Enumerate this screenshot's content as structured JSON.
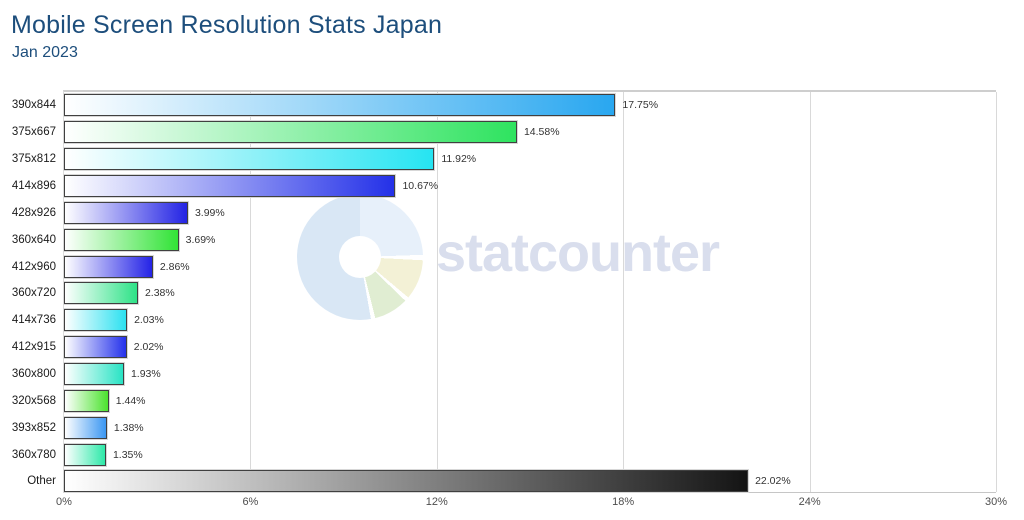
{
  "header": {
    "title": "Mobile Screen Resolution Stats Japan",
    "subtitle": "Jan 2023"
  },
  "watermark": {
    "text": "statcounter"
  },
  "axis": {
    "tick_labels": [
      "0%",
      "6%",
      "12%",
      "18%",
      "24%",
      "30%"
    ]
  },
  "chart_data": {
    "type": "bar",
    "orientation": "horizontal",
    "title": "Mobile Screen Resolution Stats Japan",
    "subtitle": "Jan 2023",
    "categories": [
      "390x844",
      "375x667",
      "375x812",
      "414x896",
      "428x926",
      "360x640",
      "412x960",
      "360x720",
      "414x736",
      "412x915",
      "360x800",
      "320x568",
      "393x852",
      "360x780",
      "Other"
    ],
    "values": [
      17.75,
      14.58,
      11.92,
      10.67,
      3.99,
      3.69,
      2.86,
      2.38,
      2.03,
      2.02,
      1.93,
      1.44,
      1.38,
      1.35,
      22.02
    ],
    "value_labels": [
      "17.75%",
      "14.58%",
      "11.92%",
      "10.67%",
      "3.99%",
      "3.69%",
      "2.86%",
      "2.38%",
      "2.03%",
      "2.02%",
      "1.93%",
      "1.44%",
      "1.38%",
      "1.35%",
      "22.02%"
    ],
    "bar_colors": [
      "#29a7f0",
      "#2ee35f",
      "#26e4f2",
      "#2431e8",
      "#2424e4",
      "#31e336",
      "#2423e6",
      "#2ee287",
      "#2ce1f0",
      "#2431eb",
      "#29e3c4",
      "#4be32e",
      "#3b97f2",
      "#2ee9a9",
      "#141414"
    ],
    "gradient_start_color": "#ffffff",
    "xlim": [
      0,
      30
    ],
    "xticks": [
      0,
      6,
      12,
      18,
      24,
      30
    ],
    "grid": "vertical",
    "legend": "none",
    "ylabel": "",
    "xlabel": ""
  }
}
